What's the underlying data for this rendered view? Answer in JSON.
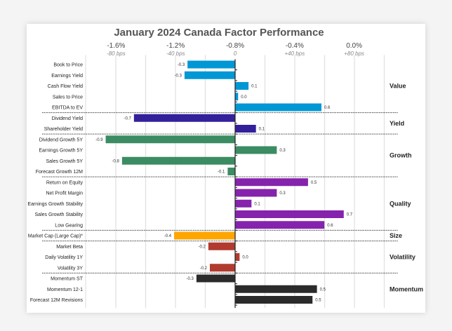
{
  "chart_data": {
    "type": "bar",
    "orientation": "horizontal",
    "title": "January 2024 Canada Factor Performance",
    "x_ticks": [
      {
        "label": "-1.6%",
        "sub": "-80 bps",
        "v": -0.8
      },
      {
        "label": "-1.2%",
        "sub": "-40 bps",
        "v": -0.4
      },
      {
        "label": "-0.8%",
        "sub": "0",
        "v": 0
      },
      {
        "label": "-0.4%",
        "sub": "+40 bps",
        "v": 0.4
      },
      {
        "label": "0.0%",
        "sub": "+80 bps",
        "v": 0.8
      }
    ],
    "xlim": [
      -0.8,
      1.0
    ],
    "groups": [
      {
        "name": "Value",
        "color": "#0097d4",
        "items": [
          [
            "Book to Price",
            -0.32,
            "-0.3"
          ],
          [
            "Earnings Yield",
            -0.34,
            "-0.3"
          ],
          [
            "Cash Flow Yield",
            0.09,
            "0.1"
          ],
          [
            "Sales to Price",
            0.02,
            "0.0"
          ],
          [
            "EBITDA to EV",
            0.58,
            "0.6"
          ]
        ]
      },
      {
        "name": "Yield",
        "color": "#33219c",
        "items": [
          [
            "Dividend Yield",
            -0.68,
            "-0.7"
          ],
          [
            "Shareholder Yield",
            0.14,
            "0.1"
          ]
        ]
      },
      {
        "name": "Growth",
        "color": "#3b8c62",
        "items": [
          [
            "Dividend Growth 5Y",
            -0.87,
            "-0.9"
          ],
          [
            "Earnings Growth 5Y",
            0.28,
            "0.3"
          ],
          [
            "Sales Growth 5Y",
            -0.76,
            "-0.8"
          ],
          [
            "Forecast Growth 12M",
            -0.05,
            "-0.1"
          ]
        ]
      },
      {
        "name": "Quality",
        "color": "#8523ad",
        "items": [
          [
            "Return on Equity",
            0.49,
            "0.5"
          ],
          [
            "Net Profit Margin",
            0.28,
            "0.3"
          ],
          [
            "Earnings Growth Stability",
            0.11,
            "0.1"
          ],
          [
            "Sales Growth Stability",
            0.73,
            "0.7"
          ],
          [
            "Low Gearing",
            0.6,
            "0.6"
          ]
        ]
      },
      {
        "name": "Size",
        "color": "#ffa500",
        "items": [
          [
            "Market Cap (Large Cap)*",
            -0.41,
            "-0.4"
          ]
        ]
      },
      {
        "name": "Volatility",
        "color": "#b03b2e",
        "items": [
          [
            "Market Beta",
            -0.18,
            "-0.2"
          ],
          [
            "Daily Volatility 1Y",
            0.03,
            "0.0"
          ],
          [
            "Volatility 3Y",
            -0.17,
            "-0.2"
          ]
        ]
      },
      {
        "name": "Momentum",
        "color": "#2b2b2b",
        "items": [
          [
            "Momentum ST",
            -0.26,
            "-0.3"
          ],
          [
            "Momentum 12-1",
            0.55,
            "0.5"
          ],
          [
            "Forecast 12M Revisions",
            0.52,
            "0.5"
          ]
        ]
      }
    ]
  }
}
